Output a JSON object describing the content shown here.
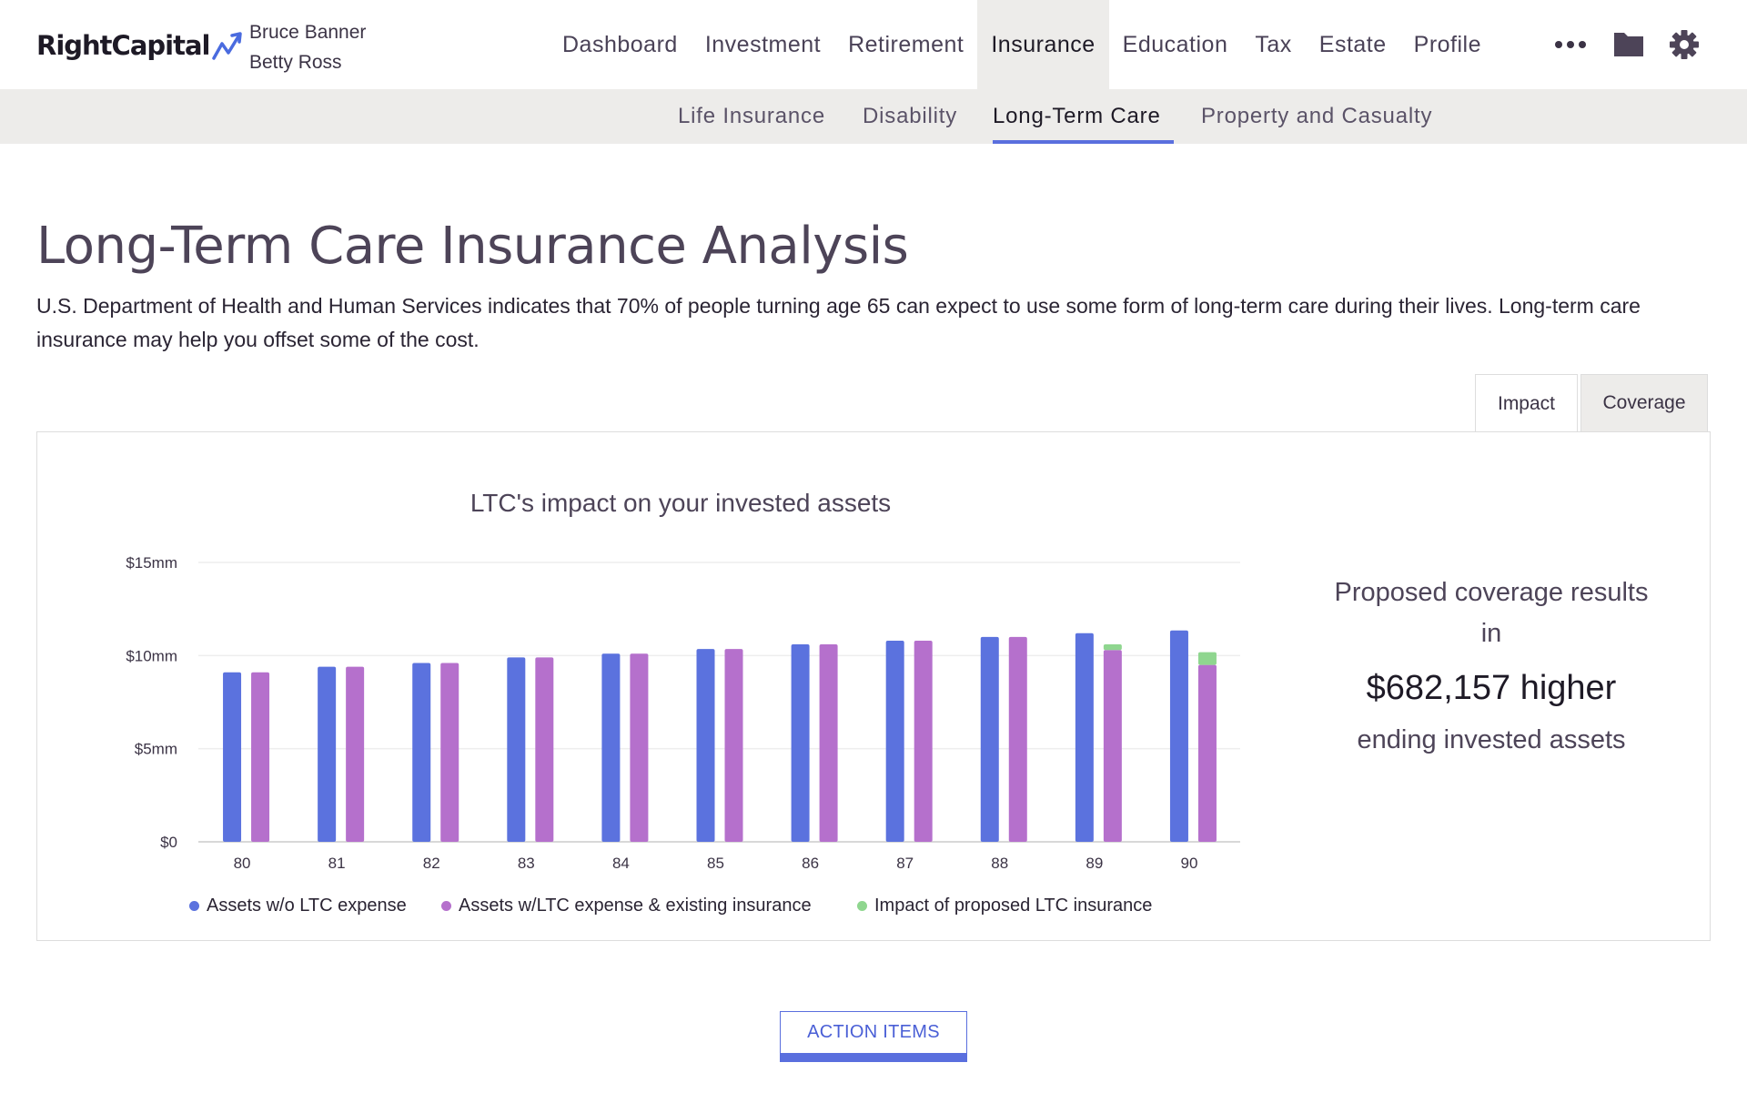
{
  "app": {
    "brand": "RightCapital",
    "clients": [
      "Bruce Banner",
      "Betty Ross"
    ]
  },
  "nav": {
    "items": [
      "Dashboard",
      "Investment",
      "Retirement",
      "Insurance",
      "Education",
      "Tax",
      "Estate",
      "Profile"
    ],
    "active": "Insurance",
    "icons": [
      "more-icon",
      "folder-icon",
      "gear-icon"
    ]
  },
  "subnav": {
    "items": [
      "Life Insurance",
      "Disability",
      "Long-Term Care",
      "Property and Casualty"
    ],
    "active": "Long-Term Care"
  },
  "page": {
    "title": "Long-Term Care Insurance Analysis",
    "description": "U.S. Department of Health and Human Services indicates that 70% of people turning age 65 can expect to use some form of long-term care during their lives. Long-term care insurance may help you offset some of the cost."
  },
  "tabs": {
    "items": [
      "Impact",
      "Coverage"
    ],
    "active": "Impact"
  },
  "result": {
    "line1": "Proposed coverage results",
    "line2": "in",
    "amount": "$682,157 higher",
    "line3": "ending invested assets"
  },
  "action_button": "ACTION ITEMS",
  "colors": {
    "accent": "#5a6fde",
    "series_without_ltc": "#5b72de",
    "series_with_ltc": "#b570cc",
    "series_impact": "#8fd68f"
  },
  "chart_data": {
    "type": "bar",
    "title": "LTC's impact on your invested assets",
    "categories": [
      "80",
      "81",
      "82",
      "83",
      "84",
      "85",
      "86",
      "87",
      "88",
      "89",
      "90"
    ],
    "yticks": [
      "$0",
      "$5mm",
      "$10mm",
      "$15mm"
    ],
    "ylim": [
      0,
      15
    ],
    "y_unit": "$mm",
    "stacked_second_bar": true,
    "series": [
      {
        "name": "Assets w/o LTC expense",
        "color": "#5b72de",
        "values": [
          9.1,
          9.4,
          9.6,
          9.9,
          10.1,
          10.35,
          10.6,
          10.8,
          11.0,
          11.2,
          11.35
        ]
      },
      {
        "name": "Assets w/LTC expense & existing insurance",
        "color": "#b570cc",
        "values": [
          9.1,
          9.4,
          9.6,
          9.9,
          10.1,
          10.35,
          10.6,
          10.8,
          11.0,
          10.3,
          9.5
        ]
      },
      {
        "name": "Impact of proposed LTC insurance",
        "color": "#8fd68f",
        "values": [
          0,
          0,
          0,
          0,
          0,
          0,
          0,
          0,
          0,
          0.3,
          0.68
        ]
      }
    ],
    "grid": true,
    "legend_position": "bottom"
  }
}
